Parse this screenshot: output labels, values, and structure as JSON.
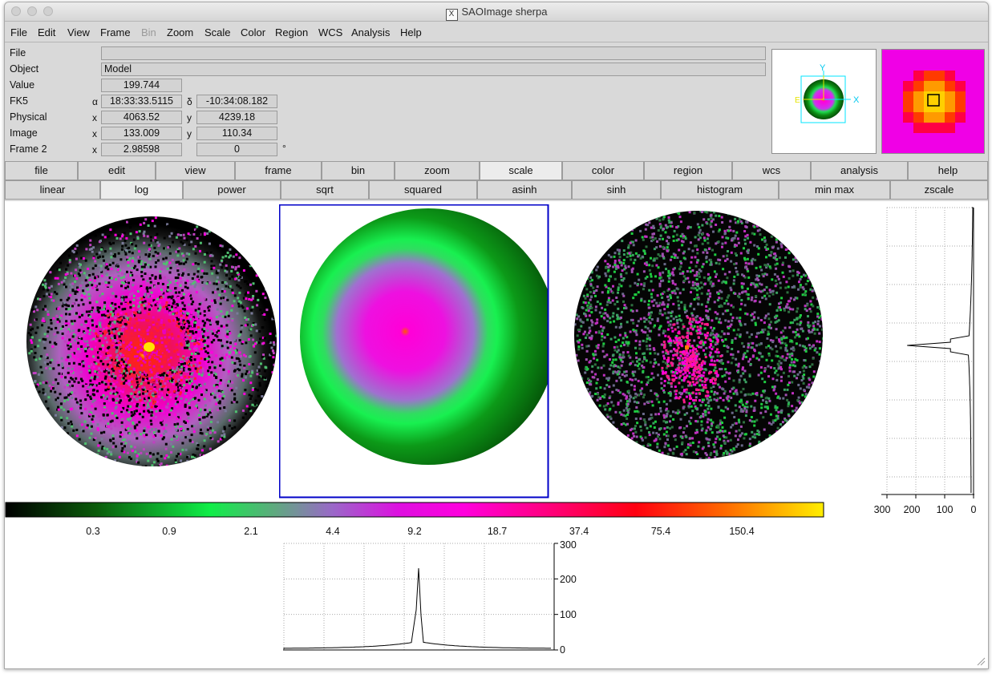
{
  "window": {
    "title": "SAOImage sherpa",
    "title_icon": "X"
  },
  "menubar": [
    "File",
    "Edit",
    "View",
    "Frame",
    "Bin",
    "Zoom",
    "Scale",
    "Color",
    "Region",
    "WCS",
    "Analysis",
    "Help"
  ],
  "menubar_disabled": [
    "Bin"
  ],
  "info": {
    "file_label": "File",
    "file_value": "",
    "object_label": "Object",
    "object_value": "Model",
    "value_label": "Value",
    "value_value": "199.744",
    "fk5_label": "FK5",
    "fk5_alpha_sym": "α",
    "fk5_alpha": "18:33:33.5115",
    "fk5_delta_sym": "δ",
    "fk5_delta": "-10:34:08.182",
    "physical_label": "Physical",
    "physical_x_sym": "x",
    "physical_x": "4063.52",
    "physical_y_sym": "y",
    "physical_y": "4239.18",
    "image_label": "Image",
    "image_x_sym": "x",
    "image_x": "133.009",
    "image_y_sym": "y",
    "image_y": "110.34",
    "frame_label": "Frame 2",
    "frame_x_sym": "x",
    "frame_zoom": "2.98598",
    "frame_angle": "0",
    "frame_degree": "°"
  },
  "panner": {
    "axis_x": "X",
    "axis_y": "Y",
    "axis_e": "E"
  },
  "buttonbar_main": [
    "file",
    "edit",
    "view",
    "frame",
    "bin",
    "zoom",
    "scale",
    "color",
    "region",
    "wcs",
    "analysis",
    "help"
  ],
  "buttonbar_main_active": "scale",
  "buttonbar_scale": [
    "linear",
    "log",
    "power",
    "sqrt",
    "squared",
    "asinh",
    "sinh",
    "histogram",
    "min max",
    "zscale"
  ],
  "buttonbar_scale_active": "log",
  "colorbar": {
    "ticks": [
      "0.3",
      "0.9",
      "2.1",
      "4.4",
      "9.2",
      "18.7",
      "37.4",
      "75.4",
      "150.4"
    ]
  },
  "hist_vertical": {
    "ticks": [
      "300",
      "200",
      "100",
      "0"
    ]
  },
  "hist_horizontal": {
    "ticks": [
      "300",
      "200",
      "100",
      "0"
    ]
  },
  "colors": {
    "window_bg": "#d9d9d9",
    "current_frame_border": "#0000c8",
    "panner_box": "#00e5ff"
  },
  "chart_data": [
    {
      "type": "area",
      "orientation": "vertical",
      "xlim": [
        0,
        300
      ],
      "x_tick_labels": [
        "300",
        "200",
        "100",
        "0"
      ],
      "peak_value": 230,
      "peak_position": 0.5
    },
    {
      "type": "area",
      "orientation": "horizontal",
      "ylim": [
        0,
        300
      ],
      "y_tick_labels": [
        "300",
        "200",
        "100",
        "0"
      ],
      "peak_value": 230,
      "peak_position": 0.5
    }
  ]
}
